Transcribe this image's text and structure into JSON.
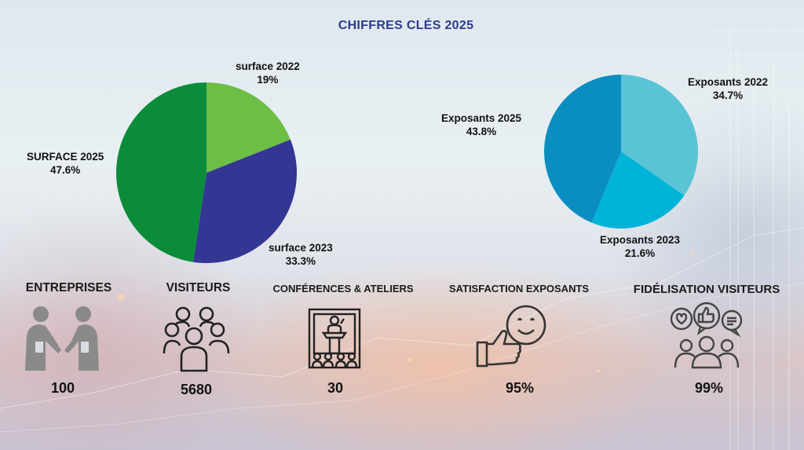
{
  "title": "CHIFFRES CLÉS 2025",
  "chart_data": [
    {
      "type": "pie",
      "title": "",
      "slices": [
        {
          "label": "surface 2022",
          "value": 19,
          "display": "19%",
          "color": "#6dbe45"
        },
        {
          "label": "surface 2023",
          "value": 33.3,
          "display": "33.3%",
          "color": "#343694"
        },
        {
          "label": "SURFACE 2025",
          "value": 47.6,
          "display": "47.6%",
          "color": "#0b8c3b"
        }
      ]
    },
    {
      "type": "pie",
      "title": "",
      "slices": [
        {
          "label": "Exposants 2022",
          "value": 34.7,
          "display": "34.7%",
          "color": "#5ac4d6"
        },
        {
          "label": "Exposants 2023",
          "value": 21.6,
          "display": "21.6%",
          "color": "#00b4d8"
        },
        {
          "label": "Exposants 2025",
          "value": 43.8,
          "display": "43.8%",
          "color": "#0a8ec0"
        }
      ]
    }
  ],
  "stats": [
    {
      "label": "ENTREPRISES",
      "value": "100",
      "icon": "handshake-icon"
    },
    {
      "label": "VISITEURS",
      "value": "5680",
      "icon": "group-icon"
    },
    {
      "label": "CONFÉRENCES & ATELIERS",
      "value": "30",
      "icon": "conference-icon"
    },
    {
      "label": "SATISFACTION EXPOSANTS",
      "value": "95%",
      "icon": "thumbs-up-smile-icon"
    },
    {
      "label": "FIDÉLISATION VISITEURS",
      "value": "99%",
      "icon": "community-feedback-icon"
    }
  ]
}
